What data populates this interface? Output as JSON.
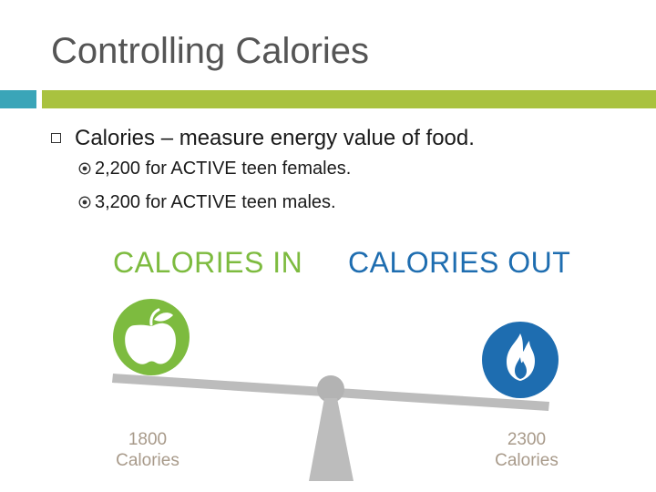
{
  "slide": {
    "title": "Controlling Calories",
    "bullet": "Calories – measure energy value of food.",
    "sub_bullets": [
      "2,200 for ACTIVE teen females.",
      "3,200 for ACTIVE teen males."
    ]
  },
  "graphic": {
    "calories_in_label": "CALORIES IN",
    "calories_out_label": "CALORIES OUT",
    "left_amount": "1800",
    "left_unit": "Calories",
    "right_amount": "2300",
    "right_unit": "Calories",
    "left_icon": "apple-icon",
    "right_icon": "flame-icon"
  },
  "colors": {
    "title": "#555555",
    "accent_teal": "#3aa5b8",
    "accent_green": "#a9c23f",
    "calories_in": "#7dbb3f",
    "calories_out": "#1e6db0",
    "scale": "#bcbcbc"
  }
}
